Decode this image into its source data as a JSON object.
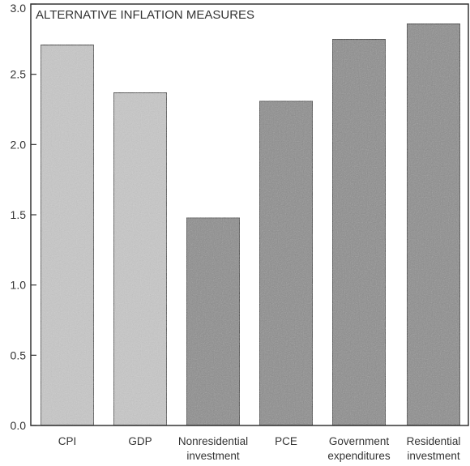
{
  "chart_data": {
    "type": "bar",
    "title": "ALTERNATIVE INFLATION MEASURES",
    "xlabel": "",
    "ylabel": "",
    "categories": [
      [
        "CPI"
      ],
      [
        "GDP"
      ],
      [
        "Nonresidential",
        "investment"
      ],
      [
        "PCE"
      ],
      [
        "Government",
        "expenditures"
      ],
      [
        "Residential",
        "investment"
      ]
    ],
    "values": [
      2.71,
      2.37,
      1.48,
      2.31,
      2.75,
      2.86
    ],
    "bar_tones": [
      "light",
      "light",
      "dark",
      "dark",
      "dark",
      "dark"
    ],
    "ylim": [
      0,
      3.0
    ],
    "yticks": [
      "0.0",
      "0.5",
      "1.0",
      "1.5",
      "2.0",
      "2.5",
      "3.0"
    ],
    "grid": false,
    "colors": {
      "light": "#c8c8c8",
      "dark": "#8c8c8c",
      "axis": "#333333",
      "bar_stroke": "#2a2a2a"
    }
  }
}
